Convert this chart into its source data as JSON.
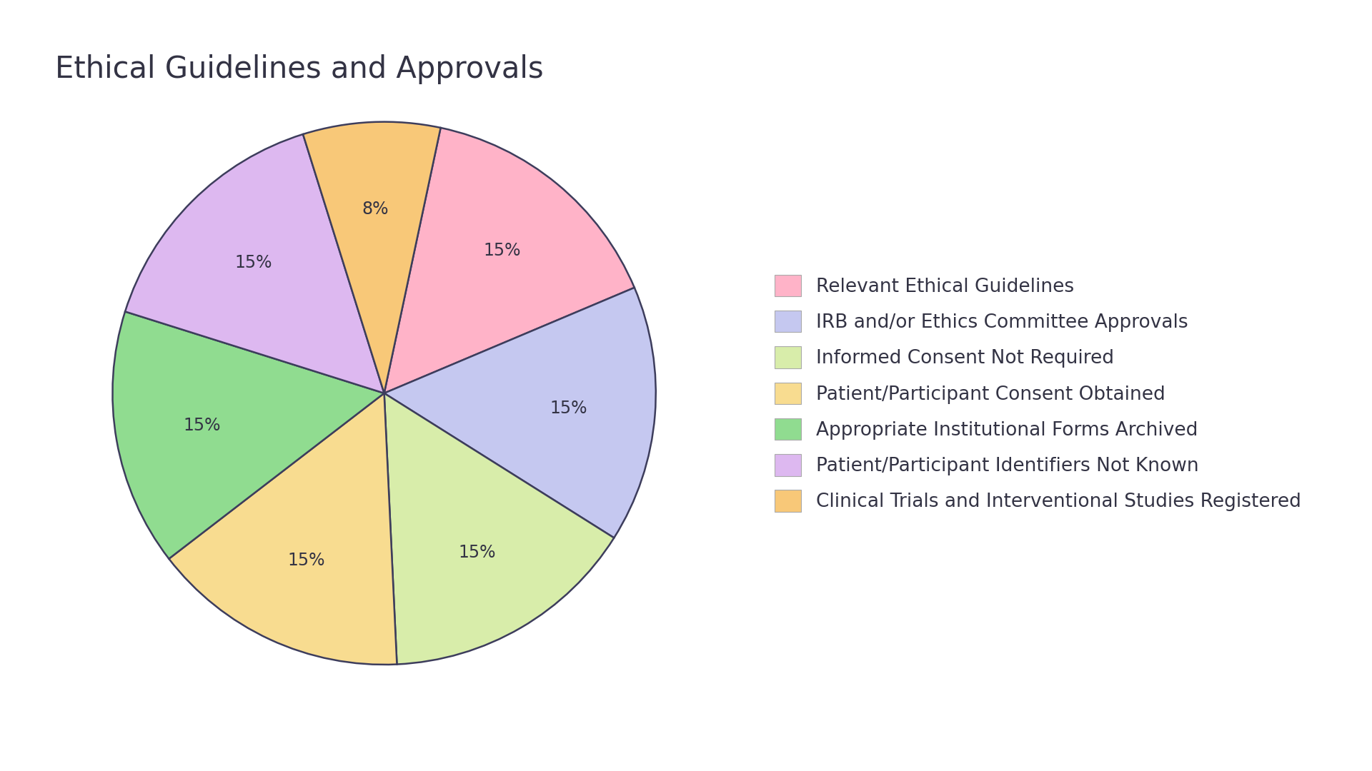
{
  "title": "Ethical Guidelines and Approvals",
  "slices": [
    {
      "label": "Relevant Ethical Guidelines",
      "value": 15,
      "color": "#FFB3C8"
    },
    {
      "label": "IRB and/or Ethics Committee Approvals",
      "value": 15,
      "color": "#C5C8F0"
    },
    {
      "label": "Informed Consent Not Required",
      "value": 15,
      "color": "#D8EDAA"
    },
    {
      "label": "Patient/Participant Consent Obtained",
      "value": 15,
      "color": "#F8DC90"
    },
    {
      "label": "Appropriate Institutional Forms Archived",
      "value": 15,
      "color": "#90DC90"
    },
    {
      "label": "Patient/Participant Identifiers Not Known",
      "value": 15,
      "color": "#DDB8F0"
    },
    {
      "label": "Clinical Trials and Interventional Studies Registered",
      "value": 8,
      "color": "#F8C878"
    }
  ],
  "background_color": "#FFFFFF",
  "title_fontsize": 30,
  "pct_fontsize": 17,
  "legend_fontsize": 19,
  "text_color": "#333344",
  "wedge_edge_color": "#3D3D5C",
  "wedge_linewidth": 1.8,
  "startangle": 78,
  "pctdistance": 0.68
}
